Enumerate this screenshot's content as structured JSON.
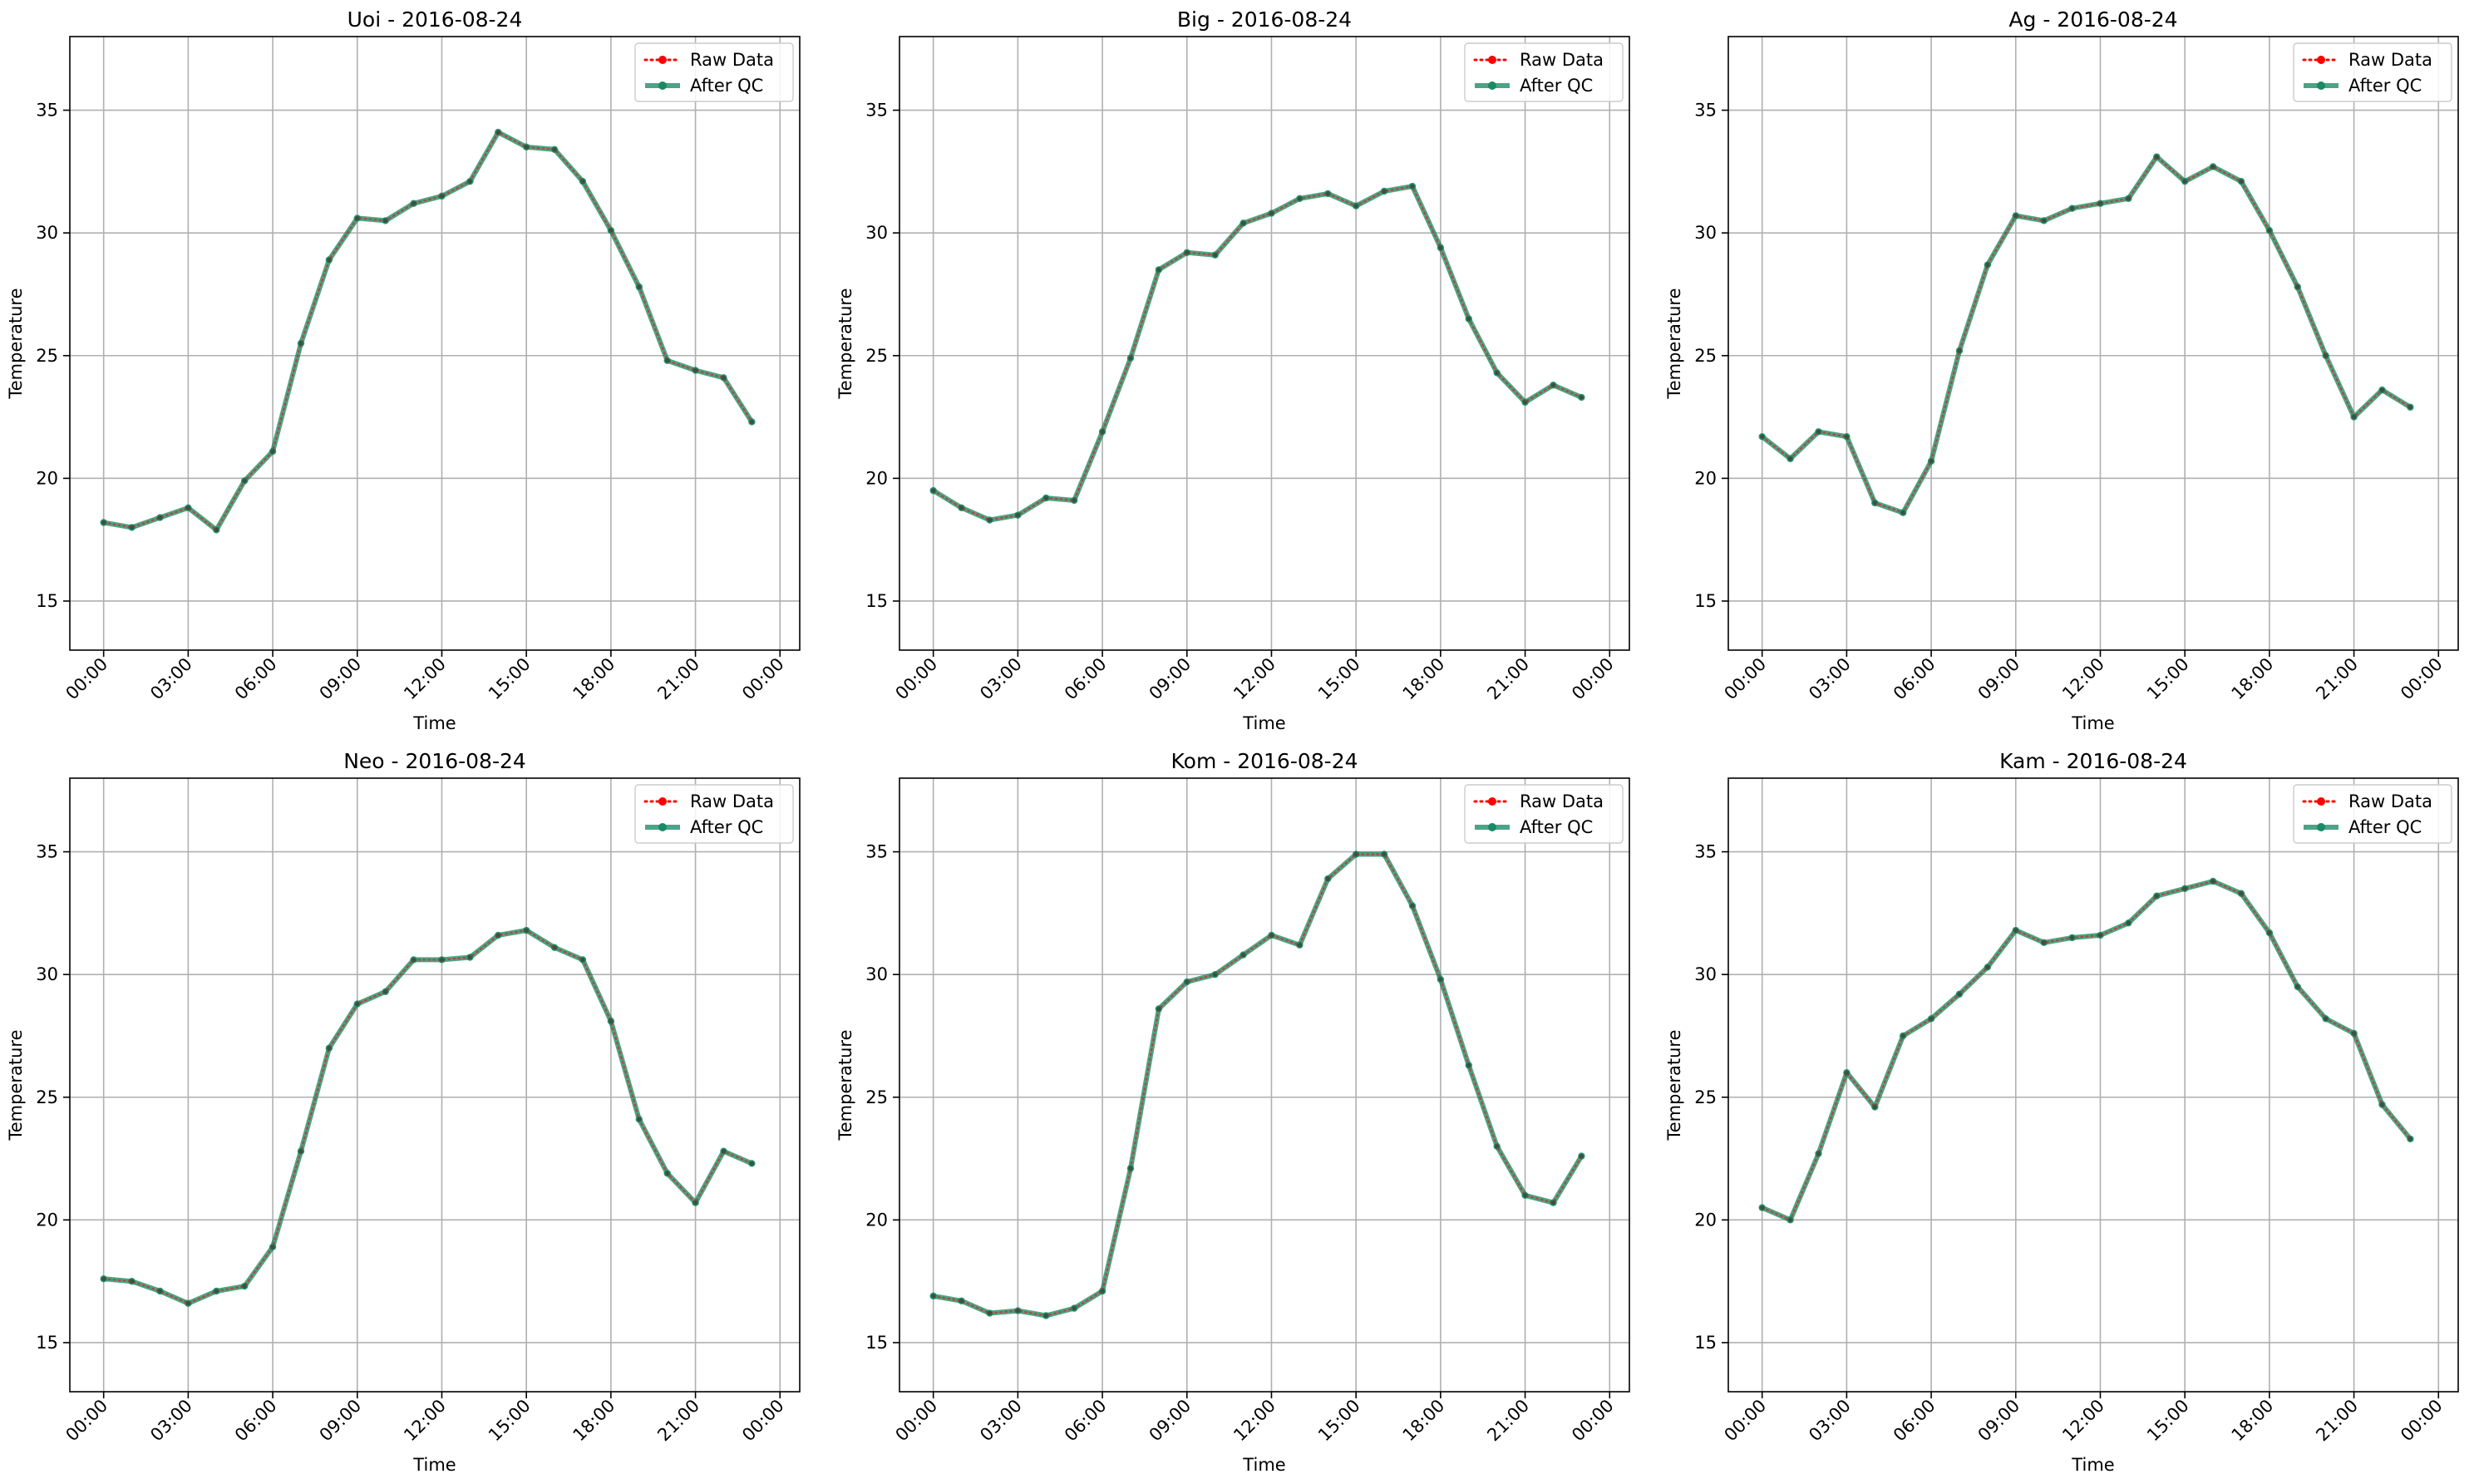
{
  "chart_data": [
    {
      "type": "line",
      "title": "Uoi - 2016-08-24",
      "xlabel": "Time",
      "ylabel": "Temperature",
      "xticklabels": [
        "00:00",
        "03:00",
        "06:00",
        "09:00",
        "12:00",
        "15:00",
        "18:00",
        "21:00",
        "00:00"
      ],
      "yticks": [
        15,
        20,
        25,
        30,
        35
      ],
      "ylim": [
        13,
        38
      ],
      "x_hours": [
        0,
        1,
        2,
        3,
        4,
        5,
        6,
        7,
        8,
        9,
        10,
        11,
        12,
        13,
        14,
        15,
        16,
        17,
        18,
        19,
        20,
        21,
        22,
        23
      ],
      "legend": [
        "Raw Data",
        "After QC"
      ],
      "legend_position": "upper right",
      "grid": true,
      "series": [
        {
          "name": "Raw Data",
          "color": "#ff0000",
          "style": "dotted",
          "values": [
            18.2,
            18.0,
            18.4,
            18.8,
            17.9,
            19.9,
            21.1,
            25.5,
            28.9,
            30.6,
            30.5,
            31.2,
            31.5,
            32.1,
            34.1,
            33.5,
            33.4,
            32.1,
            30.1,
            27.8,
            24.8,
            24.4,
            24.1,
            22.3
          ]
        },
        {
          "name": "After QC",
          "color": "#1a8a63",
          "style": "solid",
          "values": [
            18.2,
            18.0,
            18.4,
            18.8,
            17.9,
            19.9,
            21.1,
            25.5,
            28.9,
            30.6,
            30.5,
            31.2,
            31.5,
            32.1,
            34.1,
            33.5,
            33.4,
            32.1,
            30.1,
            27.8,
            24.8,
            24.4,
            24.1,
            22.3
          ]
        }
      ]
    },
    {
      "type": "line",
      "title": "Big - 2016-08-24",
      "xlabel": "Time",
      "ylabel": "Temperature",
      "xticklabels": [
        "00:00",
        "03:00",
        "06:00",
        "09:00",
        "12:00",
        "15:00",
        "18:00",
        "21:00",
        "00:00"
      ],
      "yticks": [
        15,
        20,
        25,
        30,
        35
      ],
      "ylim": [
        13,
        38
      ],
      "x_hours": [
        0,
        1,
        2,
        3,
        4,
        5,
        6,
        7,
        8,
        9,
        10,
        11,
        12,
        13,
        14,
        15,
        16,
        17,
        18,
        19,
        20,
        21,
        22,
        23
      ],
      "legend": [
        "Raw Data",
        "After QC"
      ],
      "legend_position": "upper right",
      "grid": true,
      "series": [
        {
          "name": "Raw Data",
          "color": "#ff0000",
          "style": "dotted",
          "values": [
            19.5,
            18.8,
            18.3,
            18.5,
            19.2,
            19.1,
            21.9,
            24.9,
            28.5,
            29.2,
            29.1,
            30.4,
            30.8,
            31.4,
            31.6,
            31.1,
            31.7,
            31.9,
            29.4,
            26.5,
            24.3,
            23.1,
            23.8,
            23.3
          ]
        },
        {
          "name": "After QC",
          "color": "#1a8a63",
          "style": "solid",
          "values": [
            19.5,
            18.8,
            18.3,
            18.5,
            19.2,
            19.1,
            21.9,
            24.9,
            28.5,
            29.2,
            29.1,
            30.4,
            30.8,
            31.4,
            31.6,
            31.1,
            31.7,
            31.9,
            29.4,
            26.5,
            24.3,
            23.1,
            23.8,
            23.3
          ]
        }
      ]
    },
    {
      "type": "line",
      "title": "Ag - 2016-08-24",
      "xlabel": "Time",
      "ylabel": "Temperature",
      "xticklabels": [
        "00:00",
        "03:00",
        "06:00",
        "09:00",
        "12:00",
        "15:00",
        "18:00",
        "21:00",
        "00:00"
      ],
      "yticks": [
        15,
        20,
        25,
        30,
        35
      ],
      "ylim": [
        13,
        38
      ],
      "x_hours": [
        0,
        1,
        2,
        3,
        4,
        5,
        6,
        7,
        8,
        9,
        10,
        11,
        12,
        13,
        14,
        15,
        16,
        17,
        18,
        19,
        20,
        21,
        22,
        23
      ],
      "legend": [
        "Raw Data",
        "After QC"
      ],
      "legend_position": "upper right",
      "grid": true,
      "series": [
        {
          "name": "Raw Data",
          "color": "#ff0000",
          "style": "dotted",
          "values": [
            21.7,
            20.8,
            21.9,
            21.7,
            19.0,
            18.6,
            20.7,
            25.2,
            28.7,
            30.7,
            30.5,
            31.0,
            31.2,
            31.4,
            33.1,
            32.1,
            32.7,
            32.1,
            30.1,
            27.8,
            25.0,
            22.5,
            23.6,
            22.9
          ]
        },
        {
          "name": "After QC",
          "color": "#1a8a63",
          "style": "solid",
          "values": [
            21.7,
            20.8,
            21.9,
            21.7,
            19.0,
            18.6,
            20.7,
            25.2,
            28.7,
            30.7,
            30.5,
            31.0,
            31.2,
            31.4,
            33.1,
            32.1,
            32.7,
            32.1,
            30.1,
            27.8,
            25.0,
            22.5,
            23.6,
            22.9
          ]
        }
      ]
    },
    {
      "type": "line",
      "title": "Neo - 2016-08-24",
      "xlabel": "Time",
      "ylabel": "Temperature",
      "xticklabels": [
        "00:00",
        "03:00",
        "06:00",
        "09:00",
        "12:00",
        "15:00",
        "18:00",
        "21:00",
        "00:00"
      ],
      "yticks": [
        15,
        20,
        25,
        30,
        35
      ],
      "ylim": [
        13,
        38
      ],
      "x_hours": [
        0,
        1,
        2,
        3,
        4,
        5,
        6,
        7,
        8,
        9,
        10,
        11,
        12,
        13,
        14,
        15,
        16,
        17,
        18,
        19,
        20,
        21,
        22,
        23
      ],
      "legend": [
        "Raw Data",
        "After QC"
      ],
      "legend_position": "upper right",
      "grid": true,
      "series": [
        {
          "name": "Raw Data",
          "color": "#ff0000",
          "style": "dotted",
          "values": [
            17.6,
            17.5,
            17.1,
            16.6,
            17.1,
            17.3,
            18.9,
            22.8,
            27.0,
            28.8,
            29.3,
            30.6,
            30.6,
            30.7,
            31.6,
            31.8,
            31.1,
            30.6,
            28.1,
            24.1,
            21.9,
            20.7,
            22.8,
            22.3
          ]
        },
        {
          "name": "After QC",
          "color": "#1a8a63",
          "style": "solid",
          "values": [
            17.6,
            17.5,
            17.1,
            16.6,
            17.1,
            17.3,
            18.9,
            22.8,
            27.0,
            28.8,
            29.3,
            30.6,
            30.6,
            30.7,
            31.6,
            31.8,
            31.1,
            30.6,
            28.1,
            24.1,
            21.9,
            20.7,
            22.8,
            22.3
          ]
        }
      ]
    },
    {
      "type": "line",
      "title": "Kom - 2016-08-24",
      "xlabel": "Time",
      "ylabel": "Temperature",
      "xticklabels": [
        "00:00",
        "03:00",
        "06:00",
        "09:00",
        "12:00",
        "15:00",
        "18:00",
        "21:00",
        "00:00"
      ],
      "yticks": [
        15,
        20,
        25,
        30,
        35
      ],
      "ylim": [
        13,
        38
      ],
      "x_hours": [
        0,
        1,
        2,
        3,
        4,
        5,
        6,
        7,
        8,
        9,
        10,
        11,
        12,
        13,
        14,
        15,
        16,
        17,
        18,
        19,
        20,
        21,
        22,
        23
      ],
      "legend": [
        "Raw Data",
        "After QC"
      ],
      "legend_position": "upper right",
      "grid": true,
      "series": [
        {
          "name": "Raw Data",
          "color": "#ff0000",
          "style": "dotted",
          "values": [
            16.9,
            16.7,
            16.2,
            16.3,
            16.1,
            16.4,
            17.1,
            22.1,
            28.6,
            29.7,
            30.0,
            30.8,
            31.6,
            31.2,
            33.9,
            34.9,
            34.9,
            32.8,
            29.8,
            26.3,
            23.0,
            21.0,
            20.7,
            22.6
          ]
        },
        {
          "name": "After QC",
          "color": "#1a8a63",
          "style": "solid",
          "values": [
            16.9,
            16.7,
            16.2,
            16.3,
            16.1,
            16.4,
            17.1,
            22.1,
            28.6,
            29.7,
            30.0,
            30.8,
            31.6,
            31.2,
            33.9,
            34.9,
            34.9,
            32.8,
            29.8,
            26.3,
            23.0,
            21.0,
            20.7,
            22.6
          ]
        }
      ]
    },
    {
      "type": "line",
      "title": "Kam - 2016-08-24",
      "xlabel": "Time",
      "ylabel": "Temperature",
      "xticklabels": [
        "00:00",
        "03:00",
        "06:00",
        "09:00",
        "12:00",
        "15:00",
        "18:00",
        "21:00",
        "00:00"
      ],
      "yticks": [
        15,
        20,
        25,
        30,
        35
      ],
      "ylim": [
        13,
        38
      ],
      "x_hours": [
        0,
        1,
        2,
        3,
        4,
        5,
        6,
        7,
        8,
        9,
        10,
        11,
        12,
        13,
        14,
        15,
        16,
        17,
        18,
        19,
        20,
        21,
        22,
        23
      ],
      "legend": [
        "Raw Data",
        "After QC"
      ],
      "legend_position": "upper right",
      "grid": true,
      "series": [
        {
          "name": "Raw Data",
          "color": "#ff0000",
          "style": "dotted",
          "values": [
            20.5,
            20.0,
            22.7,
            26.0,
            24.6,
            27.5,
            28.2,
            29.2,
            30.3,
            31.8,
            31.3,
            31.5,
            31.6,
            32.1,
            33.2,
            33.5,
            33.8,
            33.3,
            31.7,
            29.5,
            28.2,
            27.6,
            24.7,
            23.3
          ]
        },
        {
          "name": "After QC",
          "color": "#1a8a63",
          "style": "solid",
          "values": [
            20.5,
            20.0,
            22.7,
            26.0,
            24.6,
            27.5,
            28.2,
            29.2,
            30.3,
            31.8,
            31.3,
            31.5,
            31.6,
            32.1,
            33.2,
            33.5,
            33.8,
            33.3,
            31.7,
            29.5,
            28.2,
            27.6,
            24.7,
            23.3
          ]
        }
      ]
    }
  ]
}
